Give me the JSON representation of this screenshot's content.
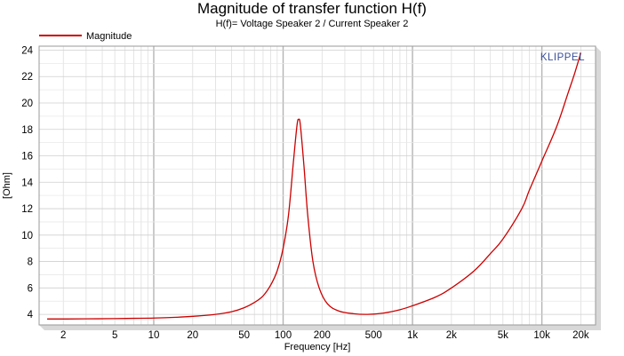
{
  "chart_data": {
    "type": "line",
    "title": "Magnitude of transfer function H(f)",
    "subtitle": "H(f)= Voltage Speaker 2 / Current Speaker 2",
    "xlabel": "Frequency [Hz]",
    "ylabel": "[Ohm]",
    "xscale": "log",
    "xlim": [
      1.3,
      26000
    ],
    "ylim": [
      3.2,
      24.3
    ],
    "grid": true,
    "legend_position": "top-left",
    "brand": "KLIPPEL",
    "x_ticks": [
      {
        "value": 2,
        "label": "2"
      },
      {
        "value": 5,
        "label": "5"
      },
      {
        "value": 10,
        "label": "10"
      },
      {
        "value": 20,
        "label": "20"
      },
      {
        "value": 50,
        "label": "50"
      },
      {
        "value": 100,
        "label": "100"
      },
      {
        "value": 200,
        "label": "200"
      },
      {
        "value": 500,
        "label": "500"
      },
      {
        "value": 1000,
        "label": "1k"
      },
      {
        "value": 2000,
        "label": "2k"
      },
      {
        "value": 5000,
        "label": "5k"
      },
      {
        "value": 10000,
        "label": "10k"
      },
      {
        "value": 20000,
        "label": "20k"
      }
    ],
    "y_ticks": [
      {
        "value": 4,
        "label": "4"
      },
      {
        "value": 6,
        "label": "6"
      },
      {
        "value": 8,
        "label": "8"
      },
      {
        "value": 10,
        "label": "10"
      },
      {
        "value": 12,
        "label": "12"
      },
      {
        "value": 14,
        "label": "14"
      },
      {
        "value": 16,
        "label": "16"
      },
      {
        "value": 18,
        "label": "18"
      },
      {
        "value": 20,
        "label": "20"
      },
      {
        "value": 22,
        "label": "22"
      },
      {
        "value": 24,
        "label": "24"
      }
    ],
    "series": [
      {
        "name": "Magnitude",
        "color": "#cc0000",
        "points": [
          [
            1.5,
            3.65
          ],
          [
            2,
            3.65
          ],
          [
            3,
            3.66
          ],
          [
            5,
            3.68
          ],
          [
            7,
            3.7
          ],
          [
            10,
            3.72
          ],
          [
            15,
            3.78
          ],
          [
            20,
            3.85
          ],
          [
            30,
            4.0
          ],
          [
            40,
            4.2
          ],
          [
            50,
            4.5
          ],
          [
            60,
            4.9
          ],
          [
            70,
            5.4
          ],
          [
            80,
            6.2
          ],
          [
            90,
            7.3
          ],
          [
            100,
            9.0
          ],
          [
            110,
            11.5
          ],
          [
            120,
            15.5
          ],
          [
            128,
            18.3
          ],
          [
            132,
            18.75
          ],
          [
            136,
            18.3
          ],
          [
            145,
            15.2
          ],
          [
            155,
            11.5
          ],
          [
            170,
            8.0
          ],
          [
            190,
            6.0
          ],
          [
            220,
            4.8
          ],
          [
            270,
            4.25
          ],
          [
            350,
            4.05
          ],
          [
            450,
            4.0
          ],
          [
            600,
            4.1
          ],
          [
            800,
            4.35
          ],
          [
            1000,
            4.65
          ],
          [
            1500,
            5.3
          ],
          [
            2000,
            6.0
          ],
          [
            3000,
            7.3
          ],
          [
            4000,
            8.6
          ],
          [
            5000,
            9.7
          ],
          [
            7000,
            12.0
          ],
          [
            8000,
            13.4
          ],
          [
            10000,
            15.6
          ],
          [
            13000,
            18.2
          ],
          [
            16000,
            20.8
          ],
          [
            18000,
            22.3
          ],
          [
            20000,
            23.8
          ]
        ]
      }
    ]
  }
}
